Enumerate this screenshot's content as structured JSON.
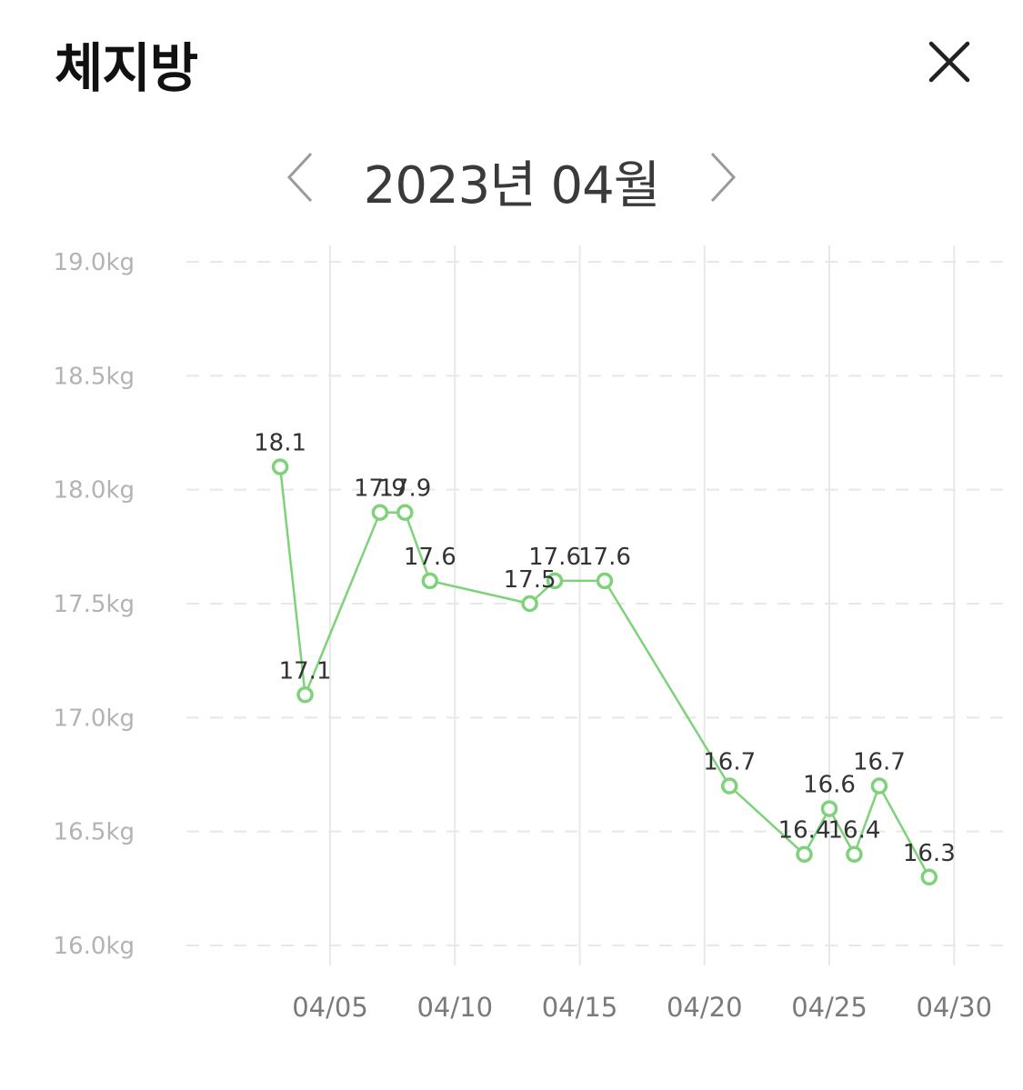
{
  "header": {
    "title": "체지방",
    "close_icon": "close-icon"
  },
  "nav": {
    "month_label": "2023년 04월",
    "prev_icon": "chevron-left-icon",
    "next_icon": "chevron-right-icon"
  },
  "colors": {
    "series": "#7ed27a",
    "grid": "#e8e8e8"
  },
  "chart_data": {
    "type": "line",
    "y_unit": "kg",
    "ylim": [
      16.0,
      19.0
    ],
    "y_ticks": [
      19.0,
      18.5,
      18.0,
      17.5,
      17.0,
      16.5,
      16.0
    ],
    "y_tick_labels": [
      "19.0kg",
      "18.5kg",
      "18.0kg",
      "17.5kg",
      "17.0kg",
      "16.5kg",
      "16.0kg"
    ],
    "xlim": [
      "2023-03-29",
      "2023-05-01"
    ],
    "x_ticks": [
      "2023-04-05",
      "2023-04-10",
      "2023-04-15",
      "2023-04-20",
      "2023-04-25",
      "2023-04-30"
    ],
    "x_tick_labels": [
      "04/05",
      "04/10",
      "04/15",
      "04/20",
      "04/25",
      "04/30"
    ],
    "grid": true,
    "series": [
      {
        "points": [
          {
            "x": "2023-04-03",
            "y": 18.1
          },
          {
            "x": "2023-04-04",
            "y": 17.1
          },
          {
            "x": "2023-04-07",
            "y": 17.9
          },
          {
            "x": "2023-04-08",
            "y": 17.9
          },
          {
            "x": "2023-04-09",
            "y": 17.6
          },
          {
            "x": "2023-04-13",
            "y": 17.5
          },
          {
            "x": "2023-04-14",
            "y": 17.6
          },
          {
            "x": "2023-04-16",
            "y": 17.6
          },
          {
            "x": "2023-04-21",
            "y": 16.7
          },
          {
            "x": "2023-04-24",
            "y": 16.4
          },
          {
            "x": "2023-04-25",
            "y": 16.6
          },
          {
            "x": "2023-04-26",
            "y": 16.4
          },
          {
            "x": "2023-04-27",
            "y": 16.7
          },
          {
            "x": "2023-04-29",
            "y": 16.3
          }
        ]
      }
    ]
  }
}
